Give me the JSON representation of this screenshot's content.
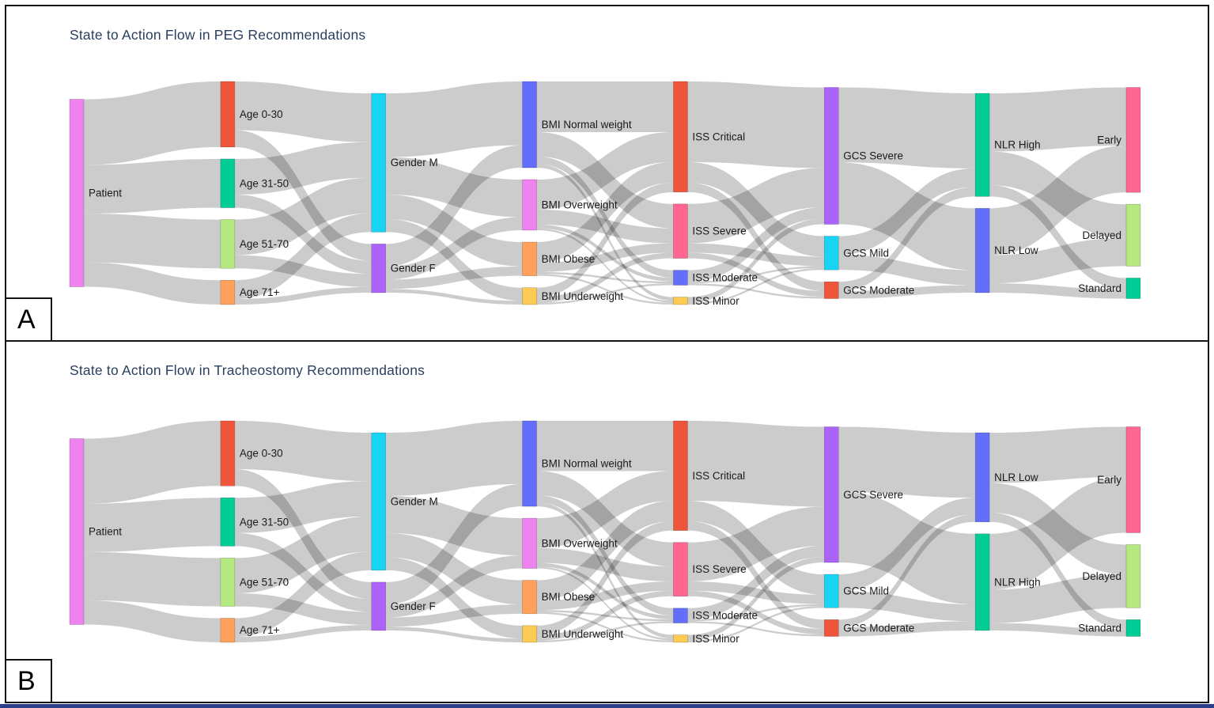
{
  "figure": {
    "panels": [
      {
        "corner_label": "A",
        "title": "State to Action Flow in PEG Recommendations"
      },
      {
        "corner_label": "B",
        "title": "State to Action Flow in Tracheostomy Recommendations"
      }
    ],
    "title_color": "#2a3f5f",
    "link_color": "rgba(0,0,0,0.2)",
    "node_colors": {
      "Patient": "#EE82EE",
      "Age 0-30": "#EF553B",
      "Age 31-50": "#00CC96",
      "Age 51-70": "#B6E880",
      "Age 71+": "#FFA15A",
      "Gender M": "#19D3F3",
      "Gender F": "#AB63FA",
      "BMI Normal weight": "#636EFA",
      "BMI Overweight": "#EE82EE",
      "BMI Obese": "#FFA15A",
      "BMI Underweight": "#FECB52",
      "ISS Critical": "#EF553B",
      "ISS Severe": "#FF6692",
      "ISS Moderate": "#636EFA",
      "ISS Minor": "#FECB52",
      "GCS Severe": "#AB63FA",
      "GCS Mild": "#19D3F3",
      "GCS Moderate": "#EF553B",
      "NLR High": "#00CC96",
      "NLR Low": "#636EFA",
      "Early": "#FF6692",
      "Delayed": "#B6E880",
      "Standard": "#00CC96"
    }
  },
  "chart_data": [
    {
      "type": "sankey",
      "title": "State to Action Flow in PEG Recommendations",
      "unit": "share of patients (%, estimated from band widths)",
      "columns": [
        [
          "Patient"
        ],
        [
          "Age 0-30",
          "Age 31-50",
          "Age 51-70",
          "Age 71+"
        ],
        [
          "Gender M",
          "Gender F"
        ],
        [
          "BMI Normal weight",
          "BMI Overweight",
          "BMI Obese",
          "BMI Underweight"
        ],
        [
          "ISS Critical",
          "ISS Severe",
          "ISS Moderate",
          "ISS Minor"
        ],
        [
          "GCS Severe",
          "GCS Mild",
          "GCS Moderate"
        ],
        [
          "NLR High",
          "NLR Low"
        ],
        [
          "Early",
          "Delayed",
          "Standard"
        ]
      ],
      "links": [
        [
          "Patient",
          "Age 0-30",
          35
        ],
        [
          "Patient",
          "Age 31-50",
          26
        ],
        [
          "Patient",
          "Age 51-70",
          26
        ],
        [
          "Patient",
          "Age 71+",
          13
        ],
        [
          "Age 0-30",
          "Gender M",
          26
        ],
        [
          "Age 0-30",
          "Gender F",
          9
        ],
        [
          "Age 31-50",
          "Gender M",
          19
        ],
        [
          "Age 31-50",
          "Gender F",
          7
        ],
        [
          "Age 51-70",
          "Gender M",
          19
        ],
        [
          "Age 51-70",
          "Gender F",
          7
        ],
        [
          "Age 71+",
          "Gender M",
          10
        ],
        [
          "Age 71+",
          "Gender F",
          3
        ],
        [
          "Gender M",
          "BMI Normal weight",
          34
        ],
        [
          "Gender M",
          "BMI Overweight",
          20
        ],
        [
          "Gender M",
          "BMI Obese",
          13
        ],
        [
          "Gender M",
          "BMI Underweight",
          7
        ],
        [
          "Gender F",
          "BMI Normal weight",
          12
        ],
        [
          "Gender F",
          "BMI Overweight",
          7
        ],
        [
          "Gender F",
          "BMI Obese",
          5
        ],
        [
          "Gender F",
          "BMI Underweight",
          2
        ],
        [
          "BMI Normal weight",
          "ISS Critical",
          27
        ],
        [
          "BMI Normal weight",
          "ISS Severe",
          13
        ],
        [
          "BMI Normal weight",
          "ISS Moderate",
          4
        ],
        [
          "BMI Normal weight",
          "ISS Minor",
          2
        ],
        [
          "BMI Overweight",
          "ISS Critical",
          16
        ],
        [
          "BMI Overweight",
          "ISS Severe",
          8
        ],
        [
          "BMI Overweight",
          "ISS Moderate",
          2
        ],
        [
          "BMI Overweight",
          "ISS Minor",
          1
        ],
        [
          "BMI Obese",
          "ISS Critical",
          11
        ],
        [
          "BMI Obese",
          "ISS Severe",
          5
        ],
        [
          "BMI Obese",
          "ISS Moderate",
          1
        ],
        [
          "BMI Obese",
          "ISS Minor",
          1
        ],
        [
          "BMI Underweight",
          "ISS Critical",
          5
        ],
        [
          "BMI Underweight",
          "ISS Severe",
          3
        ],
        [
          "BMI Underweight",
          "ISS Moderate",
          1
        ],
        [
          "ISS Critical",
          "GCS Severe",
          43
        ],
        [
          "ISS Critical",
          "GCS Mild",
          11
        ],
        [
          "ISS Critical",
          "GCS Moderate",
          5
        ],
        [
          "ISS Severe",
          "GCS Severe",
          21
        ],
        [
          "ISS Severe",
          "GCS Mild",
          5
        ],
        [
          "ISS Severe",
          "GCS Moderate",
          3
        ],
        [
          "ISS Moderate",
          "GCS Severe",
          6
        ],
        [
          "ISS Moderate",
          "GCS Mild",
          1
        ],
        [
          "ISS Moderate",
          "GCS Moderate",
          1
        ],
        [
          "ISS Minor",
          "GCS Severe",
          3
        ],
        [
          "ISS Minor",
          "GCS Mild",
          1
        ],
        [
          "GCS Severe",
          "NLR High",
          40
        ],
        [
          "GCS Severe",
          "NLR Low",
          33
        ],
        [
          "GCS Mild",
          "NLR High",
          10
        ],
        [
          "GCS Mild",
          "NLR Low",
          8
        ],
        [
          "GCS Moderate",
          "NLR High",
          5
        ],
        [
          "GCS Moderate",
          "NLR Low",
          4
        ],
        [
          "NLR High",
          "Early",
          31
        ],
        [
          "NLR High",
          "Delayed",
          18
        ],
        [
          "NLR High",
          "Standard",
          6
        ],
        [
          "NLR Low",
          "Early",
          25
        ],
        [
          "NLR Low",
          "Delayed",
          15
        ],
        [
          "NLR Low",
          "Standard",
          5
        ]
      ]
    },
    {
      "type": "sankey",
      "title": "State to Action Flow in Tracheostomy Recommendations",
      "unit": "share of patients (%, estimated from band widths)",
      "columns": [
        [
          "Patient"
        ],
        [
          "Age 0-30",
          "Age 31-50",
          "Age 51-70",
          "Age 71+"
        ],
        [
          "Gender M",
          "Gender F"
        ],
        [
          "BMI Normal weight",
          "BMI Overweight",
          "BMI Obese",
          "BMI Underweight"
        ],
        [
          "ISS Critical",
          "ISS Severe",
          "ISS Moderate",
          "ISS Minor"
        ],
        [
          "GCS Severe",
          "GCS Mild",
          "GCS Moderate"
        ],
        [
          "NLR Low",
          "NLR High"
        ],
        [
          "Early",
          "Delayed",
          "Standard"
        ]
      ],
      "links": [
        [
          "Patient",
          "Age 0-30",
          35
        ],
        [
          "Patient",
          "Age 31-50",
          26
        ],
        [
          "Patient",
          "Age 51-70",
          26
        ],
        [
          "Patient",
          "Age 71+",
          13
        ],
        [
          "Age 0-30",
          "Gender M",
          26
        ],
        [
          "Age 0-30",
          "Gender F",
          9
        ],
        [
          "Age 31-50",
          "Gender M",
          19
        ],
        [
          "Age 31-50",
          "Gender F",
          7
        ],
        [
          "Age 51-70",
          "Gender M",
          19
        ],
        [
          "Age 51-70",
          "Gender F",
          7
        ],
        [
          "Age 71+",
          "Gender M",
          10
        ],
        [
          "Age 71+",
          "Gender F",
          3
        ],
        [
          "Gender M",
          "BMI Normal weight",
          34
        ],
        [
          "Gender M",
          "BMI Overweight",
          20
        ],
        [
          "Gender M",
          "BMI Obese",
          13
        ],
        [
          "Gender M",
          "BMI Underweight",
          7
        ],
        [
          "Gender F",
          "BMI Normal weight",
          12
        ],
        [
          "Gender F",
          "BMI Overweight",
          7
        ],
        [
          "Gender F",
          "BMI Obese",
          5
        ],
        [
          "Gender F",
          "BMI Underweight",
          2
        ],
        [
          "BMI Normal weight",
          "ISS Critical",
          27
        ],
        [
          "BMI Normal weight",
          "ISS Severe",
          13
        ],
        [
          "BMI Normal weight",
          "ISS Moderate",
          4
        ],
        [
          "BMI Normal weight",
          "ISS Minor",
          2
        ],
        [
          "BMI Overweight",
          "ISS Critical",
          16
        ],
        [
          "BMI Overweight",
          "ISS Severe",
          8
        ],
        [
          "BMI Overweight",
          "ISS Moderate",
          2
        ],
        [
          "BMI Overweight",
          "ISS Minor",
          1
        ],
        [
          "BMI Obese",
          "ISS Critical",
          11
        ],
        [
          "BMI Obese",
          "ISS Severe",
          5
        ],
        [
          "BMI Obese",
          "ISS Moderate",
          1
        ],
        [
          "BMI Obese",
          "ISS Minor",
          1
        ],
        [
          "BMI Underweight",
          "ISS Critical",
          5
        ],
        [
          "BMI Underweight",
          "ISS Severe",
          3
        ],
        [
          "BMI Underweight",
          "ISS Moderate",
          1
        ],
        [
          "ISS Critical",
          "GCS Severe",
          43
        ],
        [
          "ISS Critical",
          "GCS Mild",
          11
        ],
        [
          "ISS Critical",
          "GCS Moderate",
          5
        ],
        [
          "ISS Severe",
          "GCS Severe",
          21
        ],
        [
          "ISS Severe",
          "GCS Mild",
          5
        ],
        [
          "ISS Severe",
          "GCS Moderate",
          3
        ],
        [
          "ISS Moderate",
          "GCS Severe",
          6
        ],
        [
          "ISS Moderate",
          "GCS Mild",
          1
        ],
        [
          "ISS Moderate",
          "GCS Moderate",
          1
        ],
        [
          "ISS Minor",
          "GCS Severe",
          3
        ],
        [
          "ISS Minor",
          "GCS Mild",
          1
        ],
        [
          "GCS Severe",
          "NLR Low",
          35
        ],
        [
          "GCS Severe",
          "NLR High",
          38
        ],
        [
          "GCS Mild",
          "NLR Low",
          9
        ],
        [
          "GCS Mild",
          "NLR High",
          9
        ],
        [
          "GCS Moderate",
          "NLR Low",
          4
        ],
        [
          "GCS Moderate",
          "NLR High",
          5
        ],
        [
          "NLR Low",
          "Early",
          27
        ],
        [
          "NLR Low",
          "Delayed",
          16
        ],
        [
          "NLR Low",
          "Standard",
          5
        ],
        [
          "NLR High",
          "Early",
          30
        ],
        [
          "NLR High",
          "Delayed",
          18
        ],
        [
          "NLR High",
          "Standard",
          4
        ]
      ]
    }
  ]
}
